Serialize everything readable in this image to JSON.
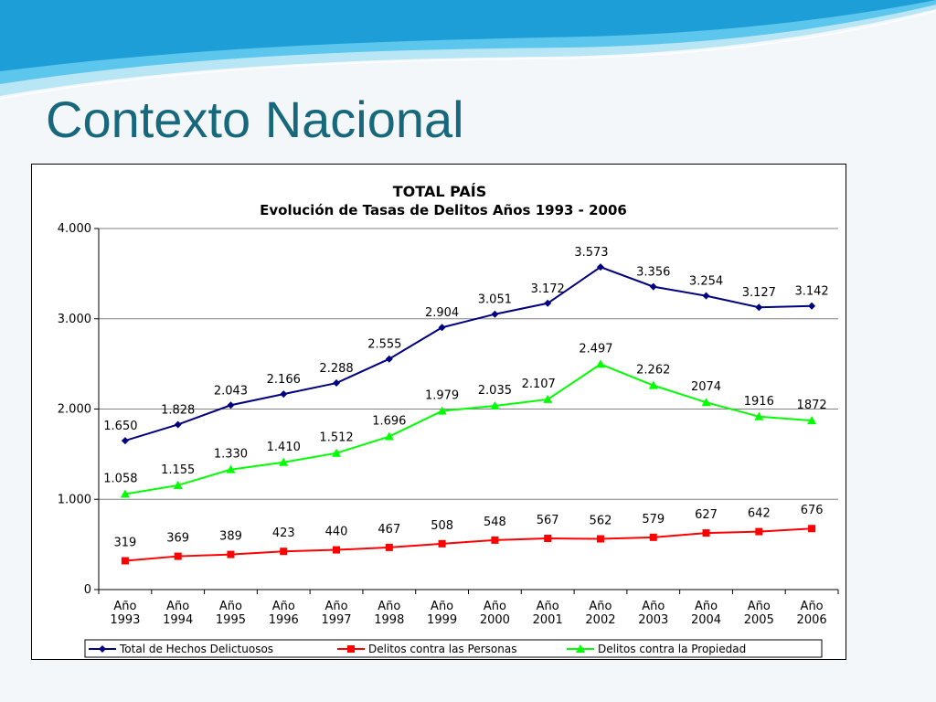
{
  "slide": {
    "title": "Contexto Nacional"
  },
  "colors": {
    "title": "#17687d",
    "series_total": "#000080",
    "series_personas": "#ff0000",
    "series_propiedad": "#00ff00",
    "header_waves": [
      "#1e9ed6",
      "#5cc6ec",
      "#b9e6f5"
    ]
  },
  "chart_data": {
    "type": "line",
    "title": "TOTAL PAÍS",
    "subtitle": "Evolución de Tasas de Delitos Años 1993 - 2006",
    "categories": [
      [
        "Año",
        "1993"
      ],
      [
        "Año",
        "1994"
      ],
      [
        "Año",
        "1995"
      ],
      [
        "Año",
        "1996"
      ],
      [
        "Año",
        "1997"
      ],
      [
        "Año",
        "1998"
      ],
      [
        "Año",
        "1999"
      ],
      [
        "Año",
        "2000"
      ],
      [
        "Año",
        "2001"
      ],
      [
        "Año",
        "2002"
      ],
      [
        "Año",
        "2003"
      ],
      [
        "Año",
        "2004"
      ],
      [
        "Año",
        "2005"
      ],
      [
        "Año",
        "2006"
      ]
    ],
    "ylim": [
      0,
      4000
    ],
    "yticks": [
      0,
      1000,
      2000,
      3000,
      4000
    ],
    "ytick_labels": [
      "0",
      "1.000",
      "2.000",
      "3.000",
      "4.000"
    ],
    "grid": true,
    "legend_position": "bottom",
    "series": [
      {
        "name": "Total de Hechos Delictuosos",
        "color": "#000080",
        "marker": "diamond",
        "values": [
          1650,
          1828,
          2043,
          2166,
          2288,
          2555,
          2904,
          3051,
          3172,
          3573,
          3356,
          3254,
          3127,
          3142
        ],
        "labels": [
          "1.650",
          "1.828",
          "2.043",
          "2.166",
          "2.288",
          "2.555",
          "2.904",
          "3.051",
          "3.172",
          "3.573",
          "3.356",
          "3.254",
          "3.127",
          "3.142"
        ]
      },
      {
        "name": "Delitos contra las Personas",
        "color": "#ff0000",
        "marker": "square",
        "values": [
          319,
          369,
          389,
          423,
          440,
          467,
          508,
          548,
          567,
          562,
          579,
          627,
          642,
          676
        ],
        "labels": [
          "319",
          "369",
          "389",
          "423",
          "440",
          "467",
          "508",
          "548",
          "567",
          "562",
          "579",
          "627",
          "642",
          "676"
        ]
      },
      {
        "name": "Delitos contra la Propiedad",
        "color": "#00ff00",
        "marker": "triangle",
        "values": [
          1058,
          1155,
          1330,
          1410,
          1512,
          1696,
          1979,
          2035,
          2107,
          2497,
          2262,
          2074,
          1916,
          1872
        ],
        "labels": [
          "1.058",
          "1.155",
          "1.330",
          "1.410",
          "1.512",
          "1.696",
          "1.979",
          "2.035",
          "2.107",
          "2.497",
          "2.262",
          "2074",
          "1916",
          "1872"
        ]
      }
    ]
  }
}
